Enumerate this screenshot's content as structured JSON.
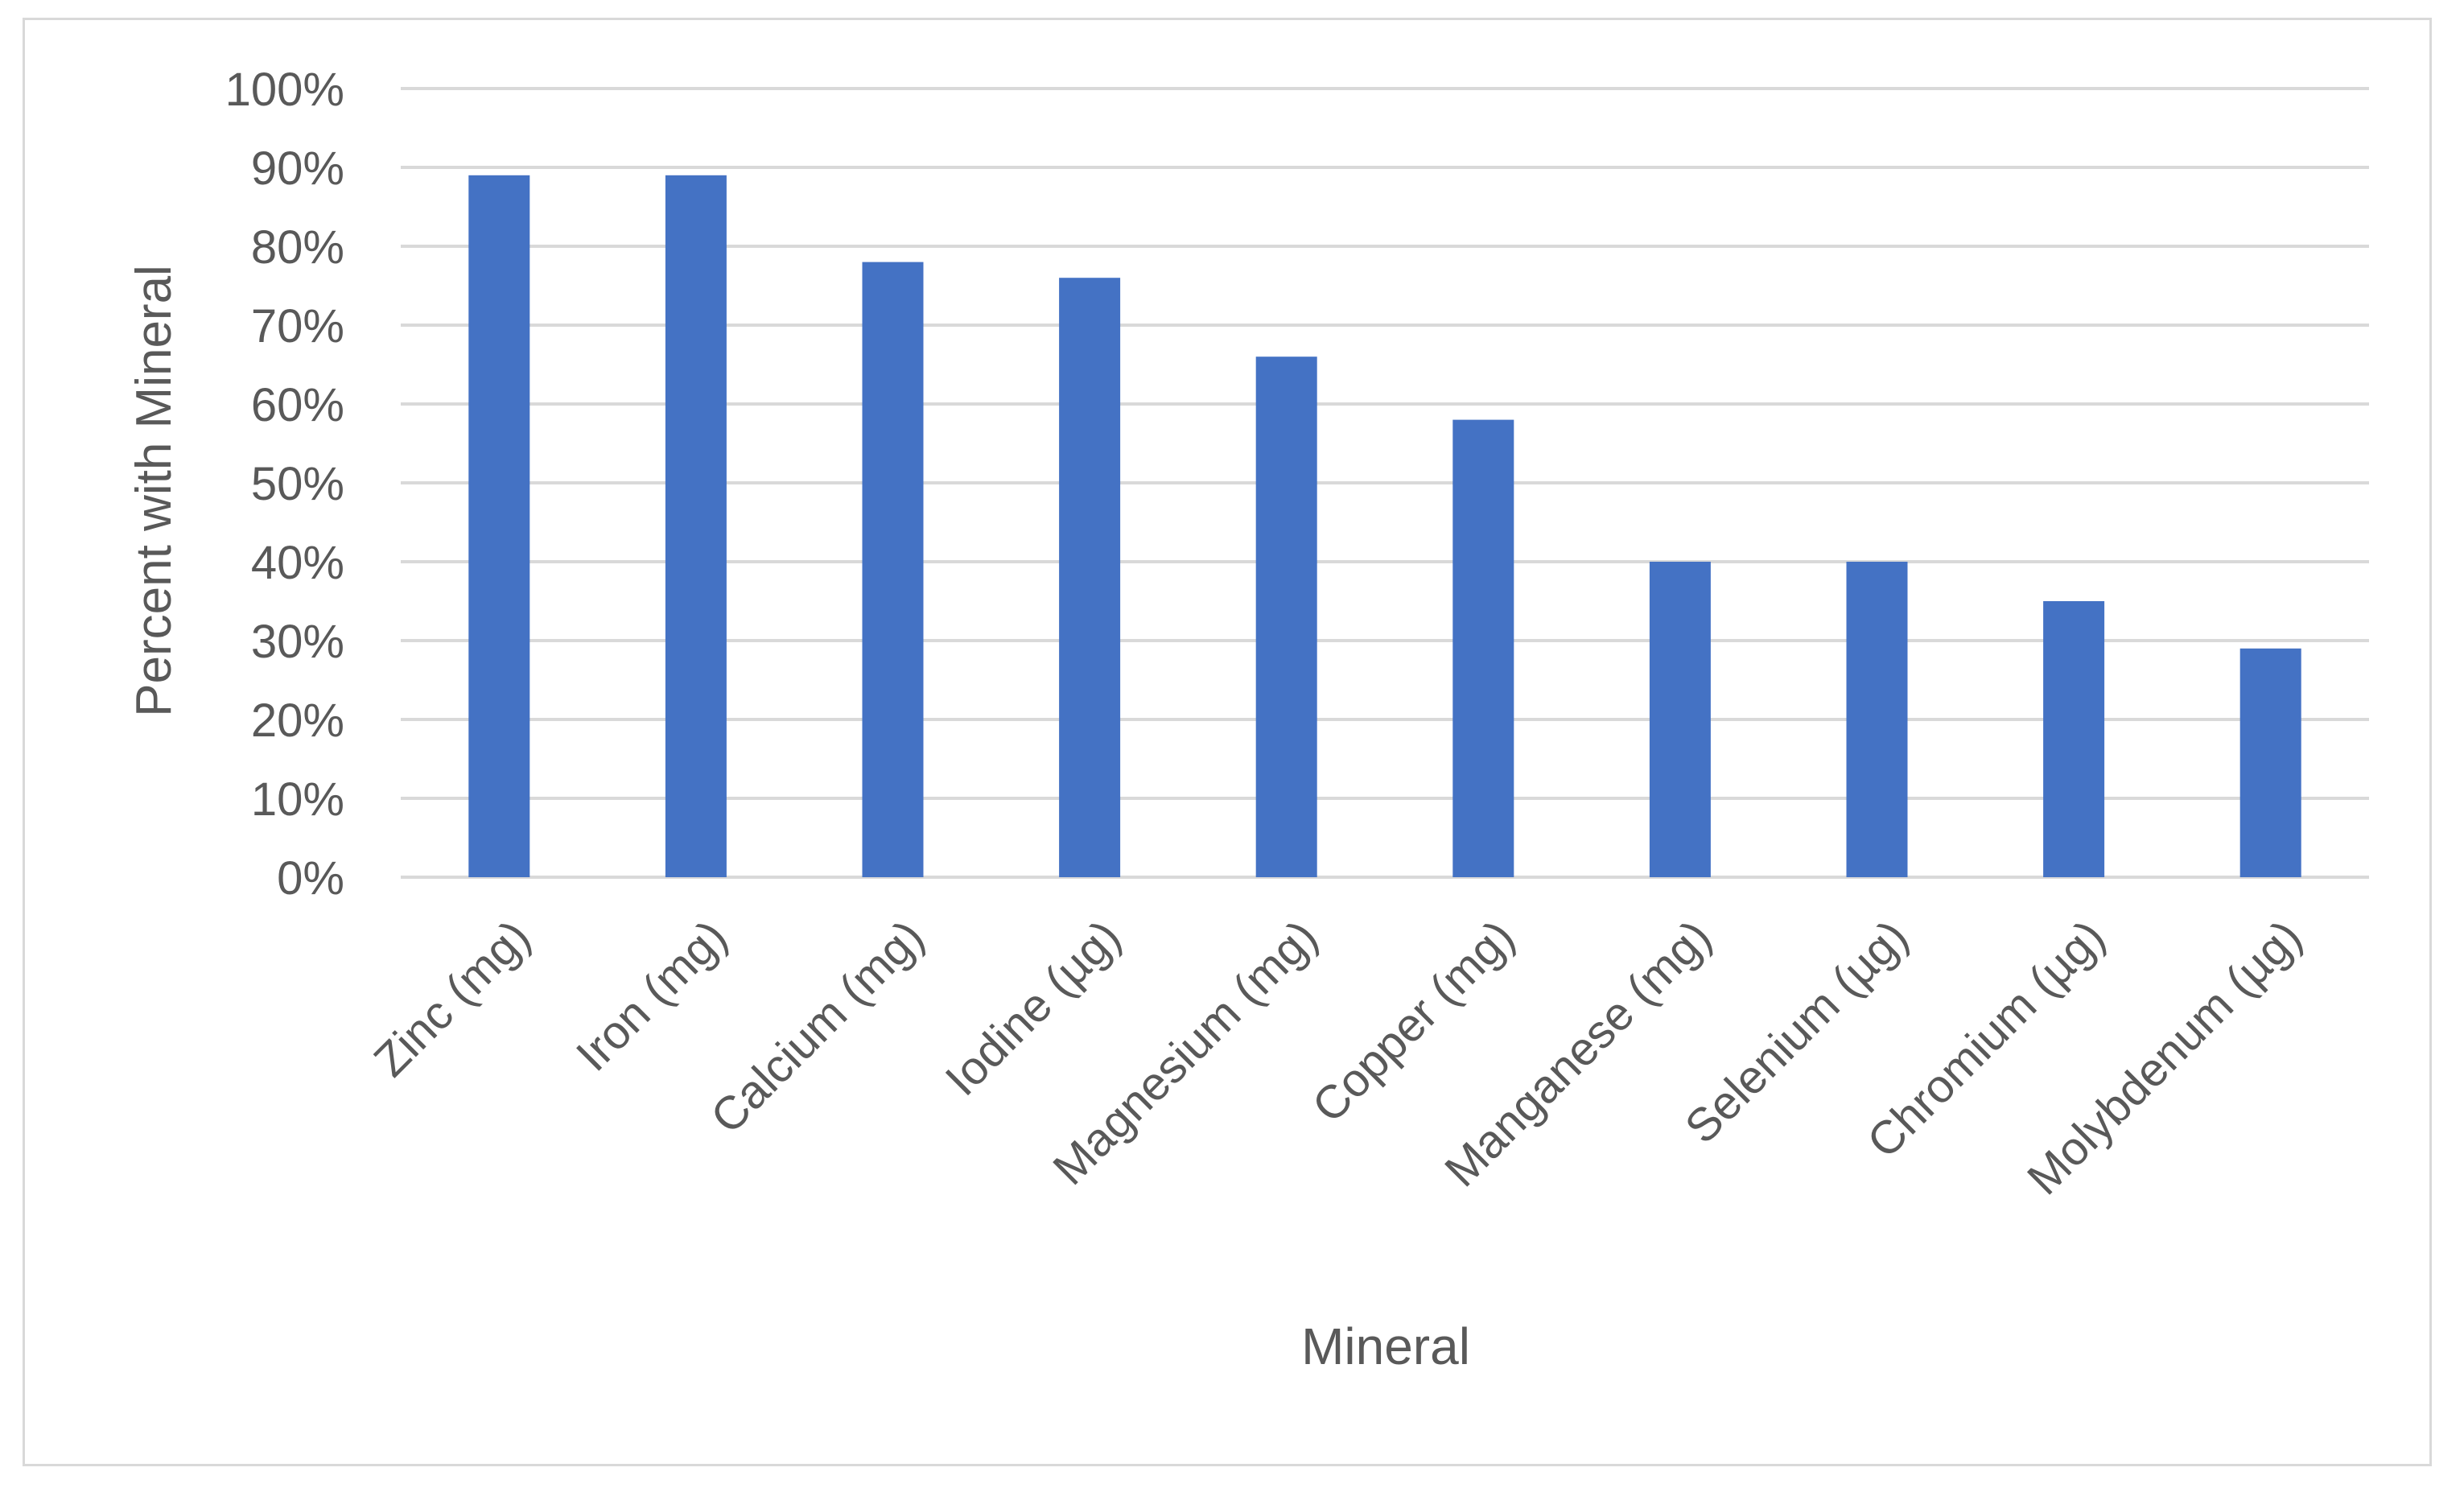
{
  "chart_data": {
    "type": "bar",
    "title": "",
    "xlabel": "Mineral",
    "ylabel": "Percent with Mineral",
    "categories": [
      "Zinc (mg)",
      "Iron (mg)",
      "Calcium (mg)",
      "Iodine (µg)",
      "Magnesium (mg)",
      "Copper (mg)",
      "Manganese (mg)",
      "Selenium (µg)",
      "Chromium (µg)",
      "Molybdenum (µg)"
    ],
    "values": [
      89,
      89,
      78,
      76,
      66,
      58,
      40,
      40,
      35,
      29
    ],
    "ylim": [
      0,
      100
    ],
    "yticks": [
      0,
      10,
      20,
      30,
      40,
      50,
      60,
      70,
      80,
      90,
      100
    ],
    "ytick_labels": [
      "0%",
      "10%",
      "20%",
      "30%",
      "40%",
      "50%",
      "60%",
      "70%",
      "80%",
      "90%",
      "100%"
    ],
    "grid": true,
    "legend": "none",
    "bar_color": "#4472c4",
    "grid_color": "#d9d9d9",
    "text_color": "#595959"
  }
}
